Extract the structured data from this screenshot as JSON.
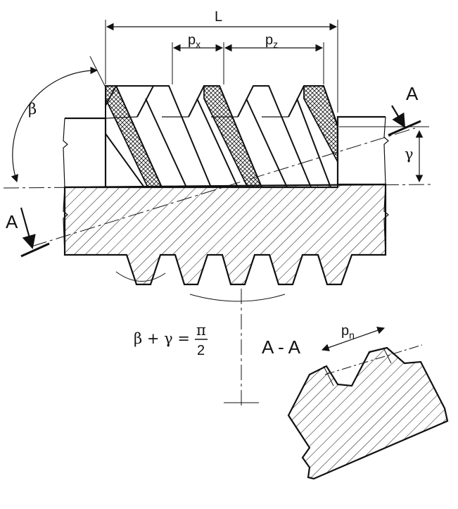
{
  "diagram": {
    "labels": {
      "length": "L",
      "axial_pitch_main": "p",
      "axial_pitch_sub": "x",
      "lead_main": "p",
      "lead_sub": "z",
      "normal_pitch_main": "p",
      "normal_pitch_sub": "n",
      "lead_angle": "γ",
      "helix_angle": "β",
      "section_mark_top": "A",
      "section_mark_left": "A",
      "section_title": "A - A"
    },
    "formula": {
      "lhs": "β + γ =",
      "numerator": "π",
      "denominator": "2"
    }
  }
}
